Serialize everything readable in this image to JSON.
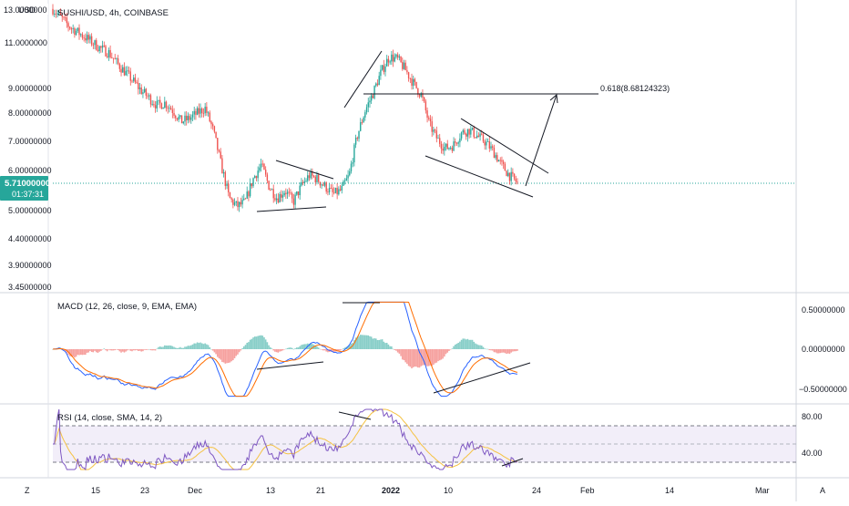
{
  "chart_data": {
    "type": "candlestick",
    "title": "SUSHI/USD, 4h, COINBASE",
    "currency_label": "USD",
    "top_truncated_price": "13.0000000",
    "price_axis": {
      "scale": "log",
      "ticks": [
        "11.0000000",
        "9.00000000",
        "8.00000000",
        "7.00000000",
        "6.00000000",
        "5.00000000",
        "4.40000000",
        "3.90000000",
        "3.45000000"
      ],
      "ylim": [
        3.45,
        13.5
      ]
    },
    "time_axis": {
      "tz_button": "Z",
      "auto_button": "A",
      "labels": [
        "15",
        "23",
        "Dec",
        "13",
        "21",
        "2022",
        "10",
        "24",
        "Feb",
        "14",
        "Mar"
      ]
    },
    "current_price": {
      "value": "5.71000000",
      "countdown": "01:37:31",
      "color": "#26a69a"
    },
    "price_path": [
      12.9,
      12.4,
      11.9,
      11.6,
      11.3,
      11.0,
      10.7,
      10.5,
      10.0,
      9.6,
      9.2,
      8.8,
      8.5,
      8.2,
      8.3,
      8.0,
      7.6,
      7.7,
      7.9,
      8.1,
      7.3,
      6.2,
      5.3,
      5.1,
      5.2,
      5.8,
      6.2,
      5.6,
      5.3,
      5.5,
      5.2,
      5.6,
      5.9,
      5.8,
      5.6,
      5.4,
      5.5,
      5.9,
      7.1,
      8.0,
      8.7,
      9.6,
      10.3,
      10.2,
      9.7,
      9.1,
      8.6,
      7.5,
      7.0,
      6.7,
      6.8,
      7.2,
      7.3,
      7.1,
      6.9,
      6.6,
      6.2,
      5.9,
      5.7
    ],
    "fib_target": {
      "label": "0.618(8.68124323)",
      "value": 8.68124323
    },
    "macd": {
      "title": "MACD (12, 26, close, 9, EMA, EMA)",
      "ticks": [
        "0.50000000",
        "0.00000000",
        "−0.50000000"
      ],
      "ylim": [
        -0.62,
        0.62
      ],
      "macd_color": "#2962ff",
      "signal_color": "#ff6d00"
    },
    "rsi": {
      "title": "RSI (14, close, SMA, 14, 2)",
      "ticks": [
        "80.00",
        "40.00"
      ],
      "ylim": [
        18,
        90
      ],
      "band": [
        30,
        70
      ],
      "line_color": "#7e57c2",
      "ma_color": "#f5c242"
    },
    "colors": {
      "up": "#26a69a",
      "down": "#ef5350",
      "drawing": "#131722"
    }
  }
}
